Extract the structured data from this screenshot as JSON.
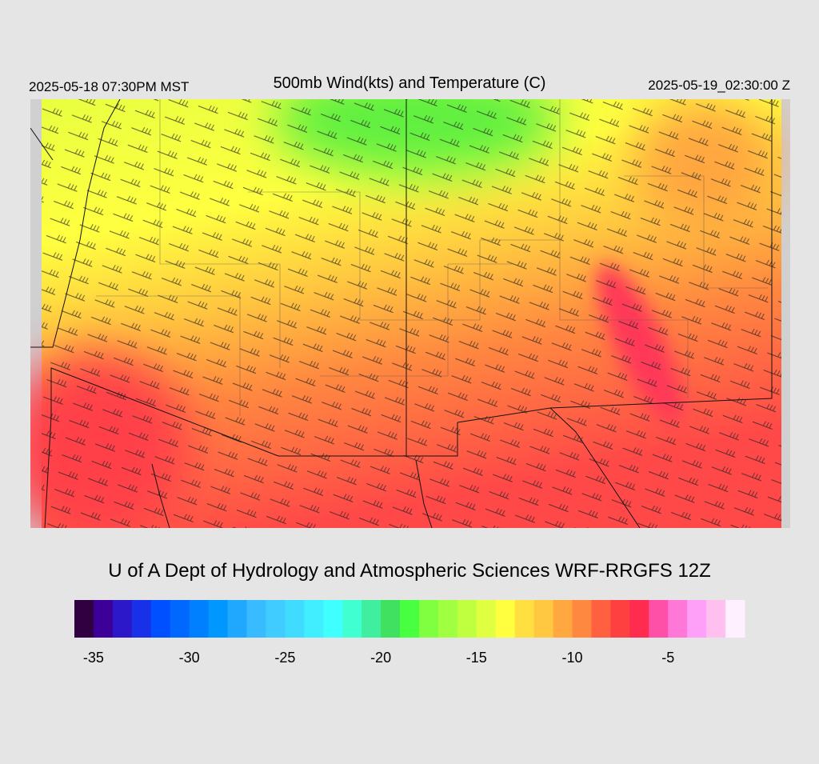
{
  "header": {
    "title": "500mb Wind(kts) and Temperature (C)",
    "local_time": "2025-05-18 07:30PM MST",
    "valid_time": "2025-05-19_02:30:00 Z"
  },
  "credit": "U of A Dept of Hydrology and Atmospheric Sciences WRF-RRGFS 12Z",
  "colorbar": {
    "range": [
      -36,
      -1
    ],
    "colors": [
      "#300040",
      "#3c0098",
      "#2c18c8",
      "#1830e8",
      "#0050ff",
      "#0068ff",
      "#0080ff",
      "#0098ff",
      "#20a8ff",
      "#38bcff",
      "#40ccff",
      "#40dcff",
      "#40eeff",
      "#40ffff",
      "#40ffd0",
      "#40eea0",
      "#40e060",
      "#48ff40",
      "#80ff40",
      "#a0ff40",
      "#c0ff40",
      "#e0ff40",
      "#ffff40",
      "#ffe040",
      "#ffc840",
      "#ffa840",
      "#ff8840",
      "#ff6040",
      "#ff4040",
      "#ff2c50",
      "#ff50a8",
      "#ff78d8",
      "#ffa0f8",
      "#ffc0f0",
      "#fff0ff"
    ],
    "ticks": [
      -35,
      -30,
      -25,
      -20,
      -15,
      -10,
      -5
    ]
  }
}
